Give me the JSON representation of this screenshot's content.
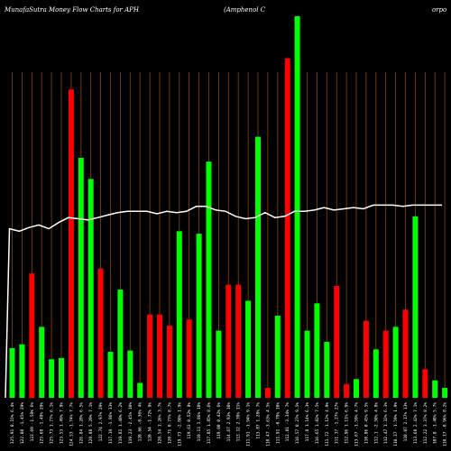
{
  "header": {
    "left_title": "MunafaSutra  Money Flow  Charts for APH",
    "mid_title": "(Amphenol C",
    "right_title": "orpo"
  },
  "colors": {
    "background": "#000000",
    "up": "#00ff00",
    "down": "#ff0000",
    "grid": "#8b4513",
    "line": "#ffffff"
  },
  "chart_data": {
    "type": "bar",
    "title": "MunafaSutra  Money Flow  Charts for APH",
    "grid": true,
    "categories": [
      "125.91 0.15% 6.4%",
      "122.08 -1.45% 29%",
      "123.69 -1.58% 6%",
      "125.68 -1.48% 29%",
      "125.73 1.77% 6.1%",
      "123.53 1.49% 7.9%",
      "124.53 -1.74% 7.7%",
      "126.84 1.28% 6.5%",
      "128.88 5.29% 7.1%",
      "122.74 2.97% 29%",
      "117.19 -1.86% 13%",
      "119.81 1.48% 6.2%",
      "119.23 -2.45% 10%",
      "120.66 -0.36% 4%",
      "120.54 -1.72% 9%",
      "120.54 1.26% 3.7%",
      "120.71 0.77% 8.7%",
      "119.73 -2.80% 1.9%",
      "119.63 0.52% 8%",
      "119.13 1.86% 18%",
      "117.85 1.85% 8.6%",
      "119.08 0.42% 6%",
      "114.67 2.93% 10%",
      "113.12 2.39% 11%",
      "111.91 -1.94% 9.1%",
      "113.87 1.28% 7%",
      "110.47 -3.63% 4.5%",
      "111.91 -0.79% 10%",
      "112.81 -3.34% 7%",
      "116.57 0.27% 9.5%",
      "117.8 1.14% 6.3%",
      "116.65 1.82% 7.5%",
      "111.72 -1.12% 4.9%",
      "111.37 -1.27% 27%",
      "112.96 1.11% 6.9%",
      "113.67 -1.59% 4.7%",
      "110.86 0.45% 9.5%",
      "112.1 -2.50% 4.8%",
      "112.47 1.32% 6.3%",
      "110.37 -1.59% 1.9%",
      "110.07 2.17% 13%",
      "113.68 2.42% 7.1%",
      "112.22 3.37% 8.2%",
      "107.8 -1.40% 5.7%",
      "110.17 -0.96% 8.2%"
    ],
    "series": [
      {
        "values": [
          40,
          43,
          100,
          57,
          31,
          32,
          248,
          193,
          176,
          104,
          37,
          87,
          38,
          12,
          67,
          67,
          58,
          134,
          63,
          132,
          190,
          54,
          91,
          91,
          78,
          210,
          8,
          66,
          273,
          307,
          54,
          76,
          45,
          90,
          11,
          15,
          62,
          39,
          54,
          57,
          71,
          146,
          23,
          14,
          8
        ]
      },
      {
        "values": [
          136,
          134,
          137,
          139,
          136,
          141,
          145,
          144,
          143,
          145,
          147,
          149,
          150,
          150,
          150,
          148,
          150,
          149,
          150,
          154,
          154,
          151,
          150,
          146,
          144,
          145,
          149,
          145,
          146,
          150,
          150,
          151,
          153,
          151,
          152,
          153,
          152,
          155,
          155,
          155,
          154,
          155,
          155,
          155,
          155
        ]
      }
    ],
    "bar_colors": [
      "g",
      "g",
      "r",
      "g",
      "g",
      "g",
      "r",
      "g",
      "g",
      "r",
      "g",
      "g",
      "g",
      "g",
      "r",
      "r",
      "r",
      "g",
      "r",
      "g",
      "g",
      "g",
      "r",
      "r",
      "g",
      "g",
      "r",
      "g",
      "r",
      "g",
      "g",
      "g",
      "g",
      "r",
      "r",
      "g",
      "r",
      "g",
      "r",
      "g",
      "r",
      "g",
      "r",
      "g",
      "g"
    ],
    "ylim": [
      0,
      320
    ]
  }
}
